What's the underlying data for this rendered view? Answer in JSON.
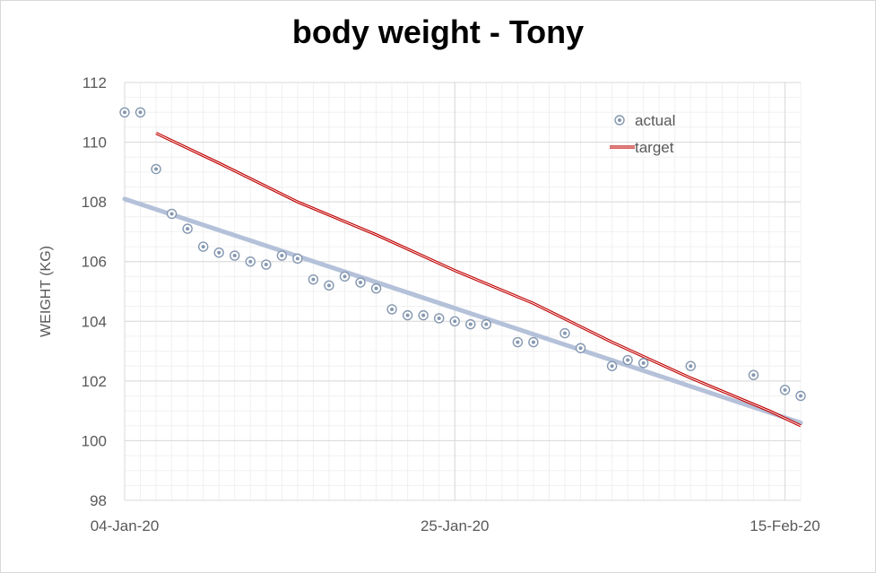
{
  "chart_data": {
    "type": "scatter",
    "title": "body weight - Tony",
    "ylabel": "WEIGHT (KG)",
    "xlabel": "",
    "ylim": [
      98,
      112
    ],
    "yticks": [
      98,
      100,
      102,
      104,
      106,
      108,
      110,
      112
    ],
    "xlim": [
      "2020-01-04",
      "2020-02-16"
    ],
    "xticks": [
      {
        "date": "2020-01-04",
        "label": "04-Jan-20"
      },
      {
        "date": "2020-01-25",
        "label": "25-Jan-20"
      },
      {
        "date": "2020-02-15",
        "label": "15-Feb-20"
      }
    ],
    "grid": true,
    "legend_position": "top-right",
    "series": [
      {
        "name": "actual",
        "kind": "scatter",
        "color": "#8497b0",
        "points": [
          {
            "x": "2020-01-04",
            "y": 111.0
          },
          {
            "x": "2020-01-05",
            "y": 111.0
          },
          {
            "x": "2020-01-06",
            "y": 109.1
          },
          {
            "x": "2020-01-07",
            "y": 107.6
          },
          {
            "x": "2020-01-08",
            "y": 107.1
          },
          {
            "x": "2020-01-09",
            "y": 106.5
          },
          {
            "x": "2020-01-10",
            "y": 106.3
          },
          {
            "x": "2020-01-11",
            "y": 106.2
          },
          {
            "x": "2020-01-12",
            "y": 106.0
          },
          {
            "x": "2020-01-13",
            "y": 105.9
          },
          {
            "x": "2020-01-14",
            "y": 106.2
          },
          {
            "x": "2020-01-15",
            "y": 106.1
          },
          {
            "x": "2020-01-16",
            "y": 105.4
          },
          {
            "x": "2020-01-17",
            "y": 105.2
          },
          {
            "x": "2020-01-18",
            "y": 105.5
          },
          {
            "x": "2020-01-19",
            "y": 105.3
          },
          {
            "x": "2020-01-20",
            "y": 105.1
          },
          {
            "x": "2020-01-21",
            "y": 104.4
          },
          {
            "x": "2020-01-22",
            "y": 104.2
          },
          {
            "x": "2020-01-23",
            "y": 104.2
          },
          {
            "x": "2020-01-24",
            "y": 104.1
          },
          {
            "x": "2020-01-25",
            "y": 104.0
          },
          {
            "x": "2020-01-26",
            "y": 103.9
          },
          {
            "x": "2020-01-27",
            "y": 103.9
          },
          {
            "x": "2020-01-29",
            "y": 103.3
          },
          {
            "x": "2020-01-30",
            "y": 103.3
          },
          {
            "x": "2020-02-01",
            "y": 103.6
          },
          {
            "x": "2020-02-02",
            "y": 103.1
          },
          {
            "x": "2020-02-04",
            "y": 102.5
          },
          {
            "x": "2020-02-05",
            "y": 102.7
          },
          {
            "x": "2020-02-06",
            "y": 102.6
          },
          {
            "x": "2020-02-09",
            "y": 102.5
          },
          {
            "x": "2020-02-13",
            "y": 102.2
          },
          {
            "x": "2020-02-15",
            "y": 101.7
          },
          {
            "x": "2020-02-16",
            "y": 101.5
          }
        ]
      },
      {
        "name": "target",
        "kind": "line",
        "color": "#c00000",
        "points": [
          {
            "x": "2020-01-06",
            "y": 110.3
          },
          {
            "x": "2020-01-10",
            "y": 109.3
          },
          {
            "x": "2020-01-15",
            "y": 108.0
          },
          {
            "x": "2020-01-20",
            "y": 106.9
          },
          {
            "x": "2020-01-25",
            "y": 105.7
          },
          {
            "x": "2020-01-30",
            "y": 104.6
          },
          {
            "x": "2020-02-04",
            "y": 103.3
          },
          {
            "x": "2020-02-09",
            "y": 102.1
          },
          {
            "x": "2020-02-14",
            "y": 101.0
          },
          {
            "x": "2020-02-16",
            "y": 100.5
          }
        ]
      },
      {
        "kind": "trendline",
        "color": "#b4c1d9",
        "points": [
          {
            "x": "2020-01-04",
            "y": 108.1
          },
          {
            "x": "2020-02-16",
            "y": 100.6
          }
        ]
      }
    ]
  }
}
